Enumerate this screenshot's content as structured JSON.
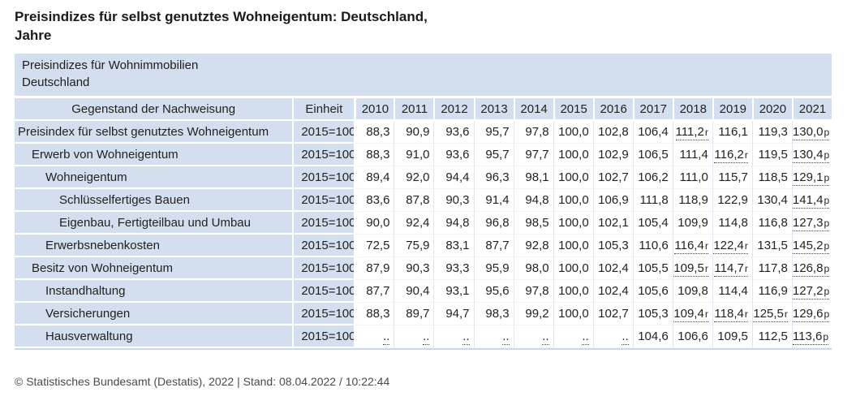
{
  "title": {
    "line1": "Preisindizes für selbst genutztes Wohneigentum: Deutschland,",
    "line2": "Jahre"
  },
  "table": {
    "caption_line1": "Preisindizes für Wohnimmobilien",
    "caption_line2": "Deutschland",
    "columns": {
      "label": "Gegenstand der Nachweisung",
      "unit": "Einheit",
      "years": [
        "2010",
        "2011",
        "2012",
        "2013",
        "2014",
        "2015",
        "2016",
        "2017",
        "2018",
        "2019",
        "2020",
        "2021"
      ]
    },
    "rows": [
      {
        "label": "Preisindex für selbst genutztes Wohneigentum",
        "indent": 0,
        "unit": "2015=100",
        "values": [
          "88,3",
          "90,9",
          "93,6",
          "95,7",
          "97,8",
          "100,0",
          "102,8",
          "106,4",
          "111,2r",
          "116,1",
          "119,3",
          "130,0p"
        ]
      },
      {
        "label": "Erwerb von Wohneigentum",
        "indent": 1,
        "unit": "2015=100",
        "values": [
          "88,3",
          "91,0",
          "93,6",
          "95,7",
          "97,7",
          "100,0",
          "102,9",
          "106,5",
          "111,4",
          "116,2r",
          "119,5",
          "130,4p"
        ]
      },
      {
        "label": "Wohneigentum",
        "indent": 2,
        "unit": "2015=100",
        "values": [
          "89,4",
          "92,0",
          "94,4",
          "96,3",
          "98,1",
          "100,0",
          "102,7",
          "106,2",
          "111,0",
          "115,7",
          "118,5",
          "129,1p"
        ]
      },
      {
        "label": "Schlüsselfertiges Bauen",
        "indent": 3,
        "unit": "2015=100",
        "values": [
          "83,6",
          "87,8",
          "90,3",
          "91,4",
          "94,8",
          "100,0",
          "106,9",
          "111,8",
          "118,9",
          "122,9",
          "130,4",
          "141,4p"
        ]
      },
      {
        "label": "Eigenbau, Fertigteilbau und Umbau",
        "indent": 3,
        "unit": "2015=100",
        "values": [
          "90,0",
          "92,4",
          "94,8",
          "96,8",
          "98,5",
          "100,0",
          "102,1",
          "105,4",
          "109,9",
          "114,8",
          "116,8",
          "127,3p"
        ]
      },
      {
        "label": "Erwerbsnebenkosten",
        "indent": 2,
        "unit": "2015=100",
        "values": [
          "72,5",
          "75,9",
          "83,1",
          "87,7",
          "92,8",
          "100,0",
          "105,3",
          "110,6",
          "116,4r",
          "122,4r",
          "131,5",
          "145,2p"
        ]
      },
      {
        "label": "Besitz von Wohneigentum",
        "indent": 1,
        "unit": "2015=100",
        "values": [
          "87,9",
          "90,3",
          "93,3",
          "95,9",
          "98,0",
          "100,0",
          "102,4",
          "105,5",
          "109,5r",
          "114,7r",
          "117,8",
          "126,8p"
        ]
      },
      {
        "label": "Instandhaltung",
        "indent": 2,
        "unit": "2015=100",
        "values": [
          "87,7",
          "90,4",
          "93,1",
          "95,6",
          "97,8",
          "100,0",
          "102,4",
          "105,6",
          "109,8",
          "114,4",
          "116,9",
          "127,2p"
        ]
      },
      {
        "label": "Versicherungen",
        "indent": 2,
        "unit": "2015=100",
        "values": [
          "88,3",
          "89,7",
          "94,7",
          "98,3",
          "99,2",
          "100,0",
          "102,7",
          "105,3",
          "109,4r",
          "118,4r",
          "125,5r",
          "129,6p"
        ]
      },
      {
        "label": "Hausverwaltung",
        "indent": 2,
        "unit": "2015=100",
        "values": [
          "..",
          "..",
          "..",
          "..",
          "..",
          "..",
          "..",
          "104,6",
          "106,6",
          "109,5",
          "112,5",
          "113,6p"
        ]
      }
    ]
  },
  "footer": {
    "copyright": "© Statistisches Bundesamt (Destatis), 2022 | Stand: 08.04.2022 / 10:22:44"
  },
  "colors": {
    "table_header_bg": "#d3dfee",
    "table_bottom_border": "#ccd8ea",
    "text": "#222222"
  }
}
